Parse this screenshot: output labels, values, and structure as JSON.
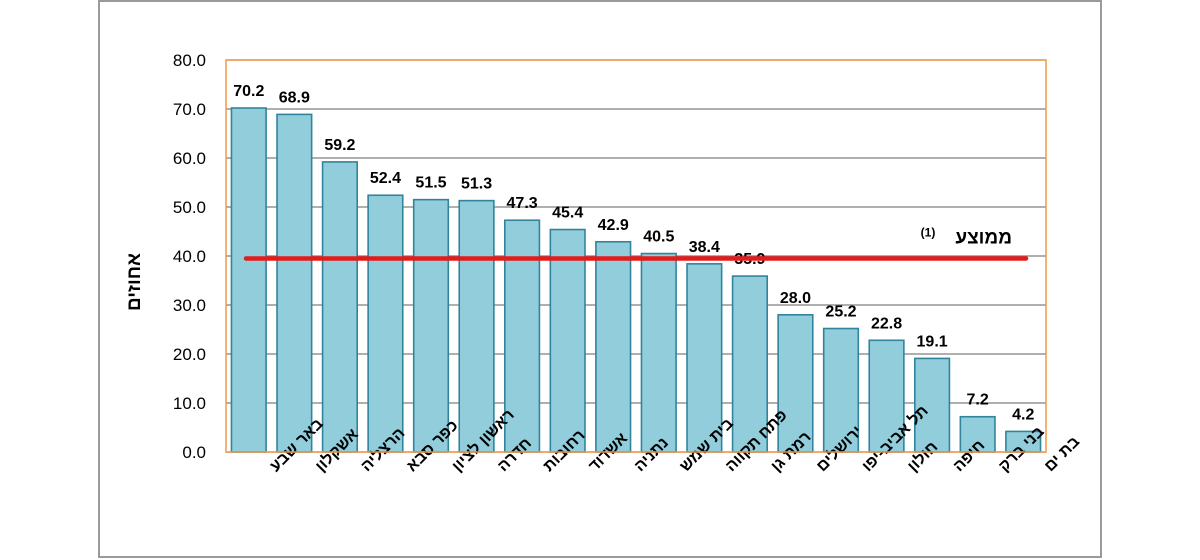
{
  "chart_data": {
    "type": "bar",
    "title": "",
    "xlabel": "",
    "ylabel": "אחוזים",
    "ylim": [
      0,
      80
    ],
    "yticks": [
      "0.0",
      "10.0",
      "20.0",
      "30.0",
      "40.0",
      "50.0",
      "60.0",
      "70.0",
      "80.0"
    ],
    "grid": true,
    "categories": [
      "באר שבע",
      "אשקלון",
      "הרצליה",
      "כפר סבא",
      "ראשון לציון",
      "חדרה",
      "רחובות",
      "אשדוד",
      "נתניה",
      "בית שמש",
      "פתח תקווה",
      "רמת גן",
      "ירושלים",
      "תל אביב-יפו",
      "חולון",
      "חיפה",
      "בני ברק",
      "בת ים"
    ],
    "values": [
      70.2,
      68.9,
      59.2,
      52.4,
      51.5,
      51.3,
      47.3,
      45.4,
      42.9,
      40.5,
      38.4,
      35.9,
      28.0,
      25.2,
      22.8,
      19.1,
      7.2,
      4.2
    ],
    "value_labels": [
      "70.2",
      "68.9",
      "59.2",
      "52.4",
      "51.5",
      "51.3",
      "47.3",
      "45.4",
      "42.9",
      "40.5",
      "38.4",
      "35.9",
      "28.0",
      "25.2",
      "22.8",
      "19.1",
      "7.2",
      "4.2"
    ],
    "average": {
      "label": "ממוצע",
      "footnote": "(1)",
      "value": 39.5
    },
    "colors": {
      "bar": "#92CDDC",
      "bar_edge": "#31849B",
      "average_line": "#E31B1B",
      "plot_border": "#F79646",
      "grid": "#7f7f7f"
    }
  }
}
